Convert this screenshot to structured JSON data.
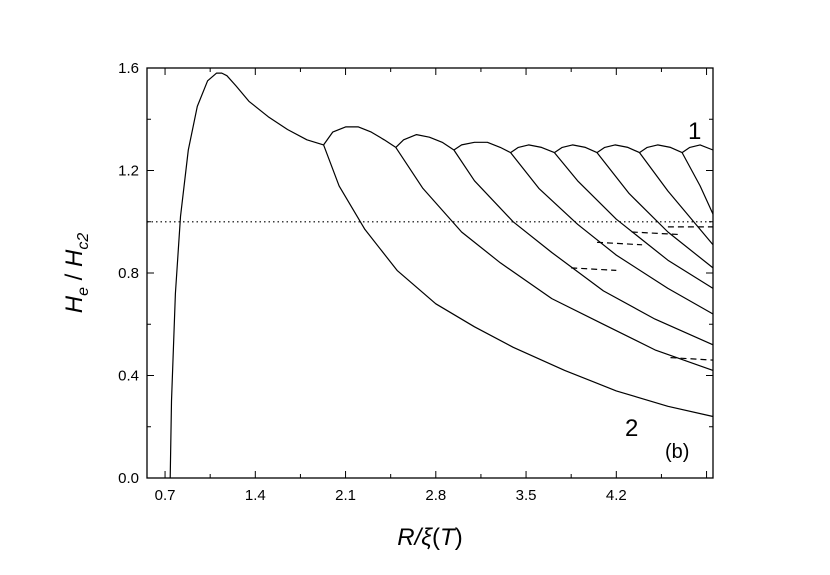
{
  "chart_data": {
    "type": "line",
    "xlabel": {
      "main": "R/ξ",
      "paren": "(",
      "var": "T",
      "close": ")"
    },
    "ylabel": {
      "h": "H",
      "hsub": "e",
      "slash": " / ",
      "h2": "H",
      "h2sub": "c2"
    },
    "xlim": [
      0.56,
      4.95
    ],
    "ylim": [
      0.0,
      1.6
    ],
    "xticks": [
      "0.7",
      "1.4",
      "2.1",
      "2.8",
      "3.5",
      "4.2"
    ],
    "yticks": [
      "0.0",
      "0.4",
      "0.8",
      "1.2",
      "1.6"
    ],
    "annotations": {
      "curve1": "1",
      "curve2": "2",
      "panel": "(b)"
    },
    "series": [
      {
        "style": "solid",
        "x": [
          0.74,
          0.75,
          0.78,
          0.82,
          0.88,
          0.95,
          1.03,
          1.1,
          1.14,
          1.18,
          1.25,
          1.35,
          1.5,
          1.65,
          1.8,
          1.93
        ],
        "y": [
          0.0,
          0.3,
          0.72,
          1.02,
          1.28,
          1.45,
          1.55,
          1.58,
          1.58,
          1.57,
          1.53,
          1.47,
          1.41,
          1.36,
          1.32,
          1.3
        ]
      },
      {
        "style": "solid",
        "x": [
          1.93,
          2.05,
          2.25,
          2.5,
          2.8,
          3.1,
          3.4,
          3.8,
          4.2,
          4.6,
          4.95
        ],
        "y": [
          1.3,
          1.14,
          0.97,
          0.81,
          0.68,
          0.59,
          0.51,
          0.42,
          0.34,
          0.28,
          0.24
        ]
      },
      {
        "style": "solid",
        "x": [
          1.93,
          2.0,
          2.1,
          2.2,
          2.3,
          2.4,
          2.49
        ],
        "y": [
          1.3,
          1.35,
          1.37,
          1.37,
          1.35,
          1.32,
          1.29
        ]
      },
      {
        "style": "solid",
        "x": [
          2.49,
          2.7,
          3.0,
          3.3,
          3.7,
          4.1,
          4.5,
          4.95
        ],
        "y": [
          1.29,
          1.13,
          0.96,
          0.84,
          0.7,
          0.6,
          0.5,
          0.42
        ]
      },
      {
        "style": "solid",
        "x": [
          2.49,
          2.55,
          2.65,
          2.75,
          2.85,
          2.94
        ],
        "y": [
          1.29,
          1.32,
          1.34,
          1.33,
          1.31,
          1.28
        ]
      },
      {
        "style": "solid",
        "x": [
          2.94,
          3.1,
          3.4,
          3.7,
          4.1,
          4.5,
          4.95
        ],
        "y": [
          1.28,
          1.16,
          1.0,
          0.88,
          0.73,
          0.62,
          0.52
        ]
      },
      {
        "style": "solid",
        "x": [
          2.94,
          3.0,
          3.1,
          3.2,
          3.3,
          3.38
        ],
        "y": [
          1.28,
          1.3,
          1.31,
          1.31,
          1.29,
          1.27
        ]
      },
      {
        "style": "solid",
        "x": [
          3.38,
          3.6,
          3.9,
          4.2,
          4.6,
          4.95
        ],
        "y": [
          1.27,
          1.13,
          0.99,
          0.87,
          0.74,
          0.64
        ]
      },
      {
        "style": "solid",
        "x": [
          3.38,
          3.44,
          3.52,
          3.62,
          3.72
        ],
        "y": [
          1.27,
          1.29,
          1.3,
          1.29,
          1.27
        ]
      },
      {
        "style": "solid",
        "x": [
          3.72,
          3.9,
          4.2,
          4.6,
          4.95
        ],
        "y": [
          1.27,
          1.16,
          1.01,
          0.85,
          0.74
        ]
      },
      {
        "style": "solid",
        "x": [
          3.72,
          3.78,
          3.86,
          3.96,
          4.05
        ],
        "y": [
          1.27,
          1.29,
          1.3,
          1.29,
          1.27
        ]
      },
      {
        "style": "solid",
        "x": [
          4.05,
          4.3,
          4.6,
          4.95
        ],
        "y": [
          1.27,
          1.11,
          0.96,
          0.82
        ]
      },
      {
        "style": "solid",
        "x": [
          4.05,
          4.11,
          4.19,
          4.29,
          4.38
        ],
        "y": [
          1.27,
          1.29,
          1.3,
          1.29,
          1.27
        ]
      },
      {
        "style": "solid",
        "x": [
          4.38,
          4.6,
          4.95
        ],
        "y": [
          1.27,
          1.12,
          0.91
        ]
      },
      {
        "style": "solid",
        "x": [
          4.38,
          4.44,
          4.52,
          4.62,
          4.71
        ],
        "y": [
          1.27,
          1.29,
          1.3,
          1.29,
          1.27
        ]
      },
      {
        "style": "solid",
        "x": [
          4.71,
          4.85,
          4.95
        ],
        "y": [
          1.27,
          1.14,
          1.03
        ]
      },
      {
        "style": "solid",
        "x": [
          4.71,
          4.77,
          4.85,
          4.95
        ],
        "y": [
          1.27,
          1.29,
          1.3,
          1.28
        ]
      },
      {
        "style": "dotted",
        "x": [
          0.56,
          4.95
        ],
        "y": [
          1.0,
          1.0
        ]
      },
      {
        "style": "dashed",
        "x": [
          3.85,
          4.2
        ],
        "y": [
          0.82,
          0.81
        ]
      },
      {
        "style": "dashed",
        "x": [
          4.05,
          4.4
        ],
        "y": [
          0.92,
          0.91
        ]
      },
      {
        "style": "dashed",
        "x": [
          4.32,
          4.7
        ],
        "y": [
          0.96,
          0.95
        ]
      },
      {
        "style": "dashed",
        "x": [
          4.6,
          4.95
        ],
        "y": [
          0.98,
          0.98
        ]
      },
      {
        "style": "dashed",
        "x": [
          4.62,
          4.95
        ],
        "y": [
          0.47,
          0.46
        ]
      }
    ]
  }
}
